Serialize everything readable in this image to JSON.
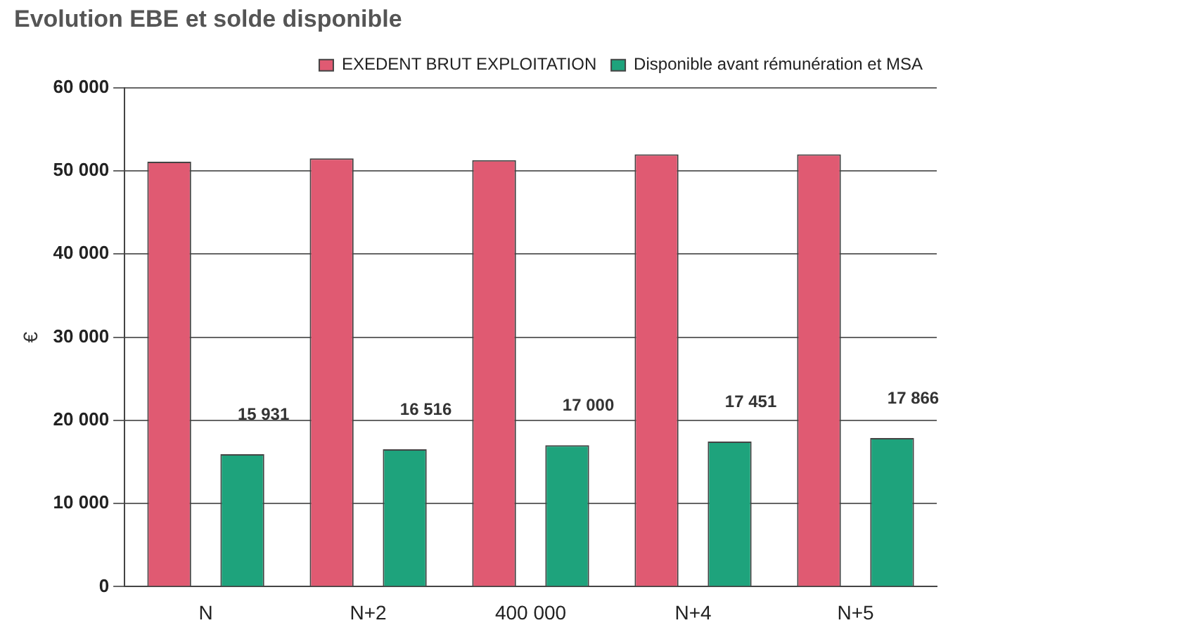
{
  "chart_data": {
    "type": "bar",
    "title": "Evolution EBE et solde disponible",
    "ylabel": "€",
    "categories": [
      "N",
      "N+2",
      "400 000",
      "N+4",
      "N+5"
    ],
    "series": [
      {
        "name": "EXEDENT BRUT EXPLOITATION",
        "color": "#e05a72",
        "values": [
          51100,
          51500,
          51300,
          52000,
          52000
        ]
      },
      {
        "name": "Disponible avant rémunération et MSA",
        "color": "#1ea37c",
        "values": [
          15931,
          16516,
          17000,
          17451,
          17866
        ],
        "value_labels": [
          "15 931",
          "16 516",
          "17 000",
          "17 451",
          "17 866"
        ]
      }
    ],
    "ylim": [
      0,
      60000
    ],
    "yticks": [
      {
        "value": 0,
        "label": "0"
      },
      {
        "value": 10000,
        "label": "10 000"
      },
      {
        "value": 20000,
        "label": "20 000"
      },
      {
        "value": 30000,
        "label": "30 000"
      },
      {
        "value": 40000,
        "label": "40 000"
      },
      {
        "value": 50000,
        "label": "50 000"
      },
      {
        "value": 60000,
        "label": "60 000"
      }
    ],
    "grid": "y",
    "legend": "top right"
  }
}
